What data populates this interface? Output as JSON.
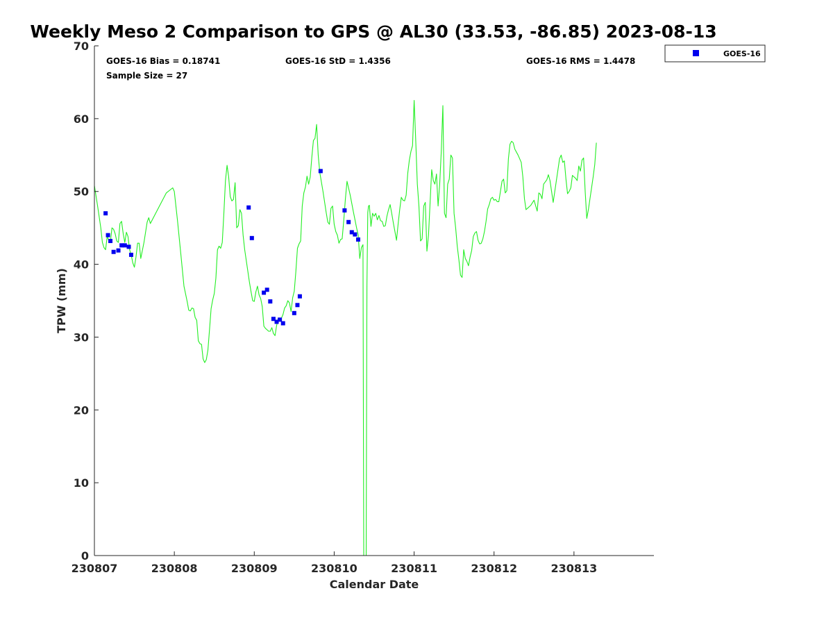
{
  "chart_data": {
    "type": "line",
    "title": "Weekly Meso 2 Comparison to GPS @ AL30 (33.53, -86.85) 2023-08-13",
    "xlabel": "Calendar Date",
    "ylabel": "TPW (mm)",
    "xlim": [
      0,
      7
    ],
    "ylim": [
      0,
      70
    ],
    "x_tick_values": [
      0,
      1,
      2,
      3,
      4,
      5,
      6
    ],
    "x_tick_labels": [
      "230807",
      "230808",
      "230809",
      "230810",
      "230811",
      "230812",
      "230813"
    ],
    "y_tick_values": [
      0,
      10,
      20,
      30,
      40,
      50,
      60,
      70
    ],
    "y_tick_labels": [
      "0",
      "10",
      "20",
      "30",
      "40",
      "50",
      "60",
      "70"
    ],
    "stats": {
      "bias": "GOES-16 Bias = 0.18741",
      "std": "GOES-16 StD = 1.4356",
      "rms": "GOES-16 RMS = 1.4478",
      "sample": "Sample Size = 27"
    },
    "legend": {
      "position": "outside-top-right",
      "entries": [
        "GOES-16"
      ]
    },
    "grid": false,
    "colors": {
      "gps_line": "#22ee22",
      "goes_marker": "#0000ee"
    },
    "series": [
      {
        "kind": "line",
        "points": [
          [
            0.0,
            50.8
          ],
          [
            0.04,
            48
          ],
          [
            0.08,
            45
          ],
          [
            0.1,
            43
          ],
          [
            0.12,
            42.3
          ],
          [
            0.14,
            42
          ],
          [
            0.16,
            43.8
          ],
          [
            0.18,
            43.3
          ],
          [
            0.2,
            43
          ],
          [
            0.22,
            45
          ],
          [
            0.24,
            44.8
          ],
          [
            0.26,
            44.2
          ],
          [
            0.28,
            43.2
          ],
          [
            0.3,
            43
          ],
          [
            0.32,
            45.6
          ],
          [
            0.34,
            45.9
          ],
          [
            0.36,
            44.2
          ],
          [
            0.38,
            43
          ],
          [
            0.4,
            44.4
          ],
          [
            0.42,
            43.8
          ],
          [
            0.44,
            42
          ],
          [
            0.46,
            41.3
          ],
          [
            0.48,
            40.2
          ],
          [
            0.5,
            39.6
          ],
          [
            0.52,
            41
          ],
          [
            0.54,
            42.9
          ],
          [
            0.56,
            42.9
          ],
          [
            0.58,
            40.8
          ],
          [
            0.62,
            43
          ],
          [
            0.66,
            45.8
          ],
          [
            0.68,
            46.4
          ],
          [
            0.7,
            45.6
          ],
          [
            0.8,
            47.7
          ],
          [
            0.9,
            49.8
          ],
          [
            0.98,
            50.5
          ],
          [
            1.0,
            50
          ],
          [
            1.04,
            46
          ],
          [
            1.08,
            41.5
          ],
          [
            1.12,
            37
          ],
          [
            1.16,
            34.9
          ],
          [
            1.18,
            33.7
          ],
          [
            1.2,
            33.6
          ],
          [
            1.22,
            34
          ],
          [
            1.24,
            33.9
          ],
          [
            1.26,
            32.7
          ],
          [
            1.28,
            32.3
          ],
          [
            1.3,
            29.5
          ],
          [
            1.32,
            29.1
          ],
          [
            1.34,
            29
          ],
          [
            1.36,
            27
          ],
          [
            1.38,
            26.5
          ],
          [
            1.4,
            26.9
          ],
          [
            1.42,
            28.2
          ],
          [
            1.44,
            31
          ],
          [
            1.46,
            33.9
          ],
          [
            1.48,
            35.1
          ],
          [
            1.5,
            36
          ],
          [
            1.52,
            38.1
          ],
          [
            1.54,
            42
          ],
          [
            1.56,
            42.5
          ],
          [
            1.58,
            42.2
          ],
          [
            1.6,
            43
          ],
          [
            1.62,
            47
          ],
          [
            1.64,
            51.5
          ],
          [
            1.66,
            53.6
          ],
          [
            1.68,
            52
          ],
          [
            1.7,
            49.3
          ],
          [
            1.72,
            48.7
          ],
          [
            1.74,
            48.9
          ],
          [
            1.76,
            51.2
          ],
          [
            1.78,
            45
          ],
          [
            1.8,
            45.3
          ],
          [
            1.82,
            47.5
          ],
          [
            1.84,
            47
          ],
          [
            1.86,
            44
          ],
          [
            1.88,
            42
          ],
          [
            1.9,
            40.5
          ],
          [
            1.92,
            39
          ],
          [
            1.94,
            37.5
          ],
          [
            1.96,
            36.2
          ],
          [
            1.98,
            35
          ],
          [
            2.0,
            34.9
          ],
          [
            2.02,
            36.2
          ],
          [
            2.04,
            37
          ],
          [
            2.06,
            35.8
          ],
          [
            2.08,
            35.3
          ],
          [
            2.1,
            34.2
          ],
          [
            2.12,
            31.5
          ],
          [
            2.14,
            31.2
          ],
          [
            2.16,
            31
          ],
          [
            2.18,
            30.8
          ],
          [
            2.2,
            30.8
          ],
          [
            2.22,
            31.3
          ],
          [
            2.24,
            30.5
          ],
          [
            2.26,
            30.2
          ],
          [
            2.28,
            31.6
          ],
          [
            2.3,
            32.6
          ],
          [
            2.32,
            32.2
          ],
          [
            2.34,
            32.6
          ],
          [
            2.36,
            33.1
          ],
          [
            2.38,
            34
          ],
          [
            2.4,
            34.3
          ],
          [
            2.42,
            35
          ],
          [
            2.44,
            34.7
          ],
          [
            2.46,
            33.5
          ],
          [
            2.48,
            35.4
          ],
          [
            2.5,
            36.3
          ],
          [
            2.52,
            39
          ],
          [
            2.54,
            42.2
          ],
          [
            2.56,
            42.8
          ],
          [
            2.58,
            43.2
          ],
          [
            2.6,
            48
          ],
          [
            2.62,
            49.8
          ],
          [
            2.64,
            50.6
          ],
          [
            2.66,
            52.1
          ],
          [
            2.68,
            51
          ],
          [
            2.7,
            52
          ],
          [
            2.72,
            54.7
          ],
          [
            2.74,
            57
          ],
          [
            2.76,
            57.3
          ],
          [
            2.78,
            59.2
          ],
          [
            2.8,
            55
          ],
          [
            2.82,
            52.6
          ],
          [
            2.86,
            50
          ],
          [
            2.9,
            47.1
          ],
          [
            2.92,
            45.8
          ],
          [
            2.94,
            45.5
          ],
          [
            2.96,
            47.7
          ],
          [
            2.98,
            48
          ],
          [
            3.0,
            45.5
          ],
          [
            3.02,
            44.5
          ],
          [
            3.04,
            44
          ],
          [
            3.06,
            42.9
          ],
          [
            3.08,
            43.4
          ],
          [
            3.1,
            43.5
          ],
          [
            3.12,
            46
          ],
          [
            3.14,
            48.9
          ],
          [
            3.16,
            51.4
          ],
          [
            3.2,
            49.5
          ],
          [
            3.24,
            47.2
          ],
          [
            3.28,
            45
          ],
          [
            3.3,
            44
          ],
          [
            3.32,
            40.8
          ],
          [
            3.34,
            42.3
          ],
          [
            3.36,
            42.7
          ],
          [
            3.37,
            0
          ],
          [
            3.4,
            0
          ],
          [
            3.41,
            37
          ],
          [
            3.42,
            47.1
          ],
          [
            3.43,
            48
          ],
          [
            3.44,
            48.1
          ],
          [
            3.46,
            45.2
          ],
          [
            3.48,
            47
          ],
          [
            3.5,
            46.6
          ],
          [
            3.52,
            47
          ],
          [
            3.54,
            46.1
          ],
          [
            3.56,
            46.7
          ],
          [
            3.58,
            46
          ],
          [
            3.6,
            45.9
          ],
          [
            3.62,
            45.2
          ],
          [
            3.64,
            45.3
          ],
          [
            3.66,
            46.6
          ],
          [
            3.68,
            47.5
          ],
          [
            3.7,
            48.2
          ],
          [
            3.72,
            47
          ],
          [
            3.74,
            45.7
          ],
          [
            3.76,
            44.5
          ],
          [
            3.78,
            43.3
          ],
          [
            3.8,
            45.5
          ],
          [
            3.82,
            47.5
          ],
          [
            3.84,
            49.2
          ],
          [
            3.86,
            48.8
          ],
          [
            3.88,
            48.7
          ],
          [
            3.9,
            49.5
          ],
          [
            3.92,
            52.5
          ],
          [
            3.94,
            54.3
          ],
          [
            3.96,
            55.5
          ],
          [
            3.98,
            56.3
          ],
          [
            4.0,
            62.5
          ],
          [
            4.02,
            57
          ],
          [
            4.04,
            51
          ],
          [
            4.06,
            48
          ],
          [
            4.08,
            43.2
          ],
          [
            4.1,
            43.5
          ],
          [
            4.12,
            48
          ],
          [
            4.14,
            48.5
          ],
          [
            4.16,
            41.8
          ],
          [
            4.18,
            44
          ],
          [
            4.2,
            48.5
          ],
          [
            4.22,
            53
          ],
          [
            4.24,
            51.5
          ],
          [
            4.26,
            51
          ],
          [
            4.28,
            52.4
          ],
          [
            4.3,
            48
          ],
          [
            4.32,
            51
          ],
          [
            4.34,
            55.5
          ],
          [
            4.36,
            61.8
          ],
          [
            4.38,
            47
          ],
          [
            4.4,
            46.4
          ],
          [
            4.42,
            51
          ],
          [
            4.44,
            51.7
          ],
          [
            4.46,
            55
          ],
          [
            4.48,
            54.6
          ],
          [
            4.5,
            47
          ],
          [
            4.52,
            45
          ],
          [
            4.54,
            42.5
          ],
          [
            4.56,
            40.6
          ],
          [
            4.58,
            38.5
          ],
          [
            4.6,
            38.2
          ],
          [
            4.62,
            42
          ],
          [
            4.64,
            40.8
          ],
          [
            4.66,
            40.4
          ],
          [
            4.68,
            39.8
          ],
          [
            4.7,
            41
          ],
          [
            4.72,
            41.9
          ],
          [
            4.74,
            43.8
          ],
          [
            4.76,
            44.3
          ],
          [
            4.78,
            44.5
          ],
          [
            4.8,
            43.3
          ],
          [
            4.82,
            42.8
          ],
          [
            4.84,
            42.9
          ],
          [
            4.86,
            43.5
          ],
          [
            4.88,
            44.5
          ],
          [
            4.9,
            45.9
          ],
          [
            4.92,
            47.6
          ],
          [
            4.94,
            48.2
          ],
          [
            4.96,
            49
          ],
          [
            4.98,
            49.2
          ],
          [
            5.0,
            48.8
          ],
          [
            5.02,
            48.9
          ],
          [
            5.04,
            48.6
          ],
          [
            5.06,
            48.6
          ],
          [
            5.08,
            50
          ],
          [
            5.1,
            51.4
          ],
          [
            5.12,
            51.7
          ],
          [
            5.14,
            49.8
          ],
          [
            5.16,
            50.1
          ],
          [
            5.18,
            54.5
          ],
          [
            5.2,
            56.5
          ],
          [
            5.22,
            56.9
          ],
          [
            5.24,
            56.7
          ],
          [
            5.26,
            55.8
          ],
          [
            5.3,
            55
          ],
          [
            5.34,
            54
          ],
          [
            5.36,
            52
          ],
          [
            5.38,
            49
          ],
          [
            5.4,
            47.5
          ],
          [
            5.42,
            47.7
          ],
          [
            5.46,
            48.1
          ],
          [
            5.5,
            48.8
          ],
          [
            5.54,
            47.3
          ],
          [
            5.56,
            49.8
          ],
          [
            5.58,
            49.6
          ],
          [
            5.6,
            49
          ],
          [
            5.62,
            51
          ],
          [
            5.64,
            51.3
          ],
          [
            5.66,
            51.6
          ],
          [
            5.68,
            52.3
          ],
          [
            5.7,
            51.5
          ],
          [
            5.72,
            50
          ],
          [
            5.74,
            48.5
          ],
          [
            5.76,
            50
          ],
          [
            5.78,
            51.5
          ],
          [
            5.8,
            53
          ],
          [
            5.82,
            54.5
          ],
          [
            5.84,
            55
          ],
          [
            5.86,
            54
          ],
          [
            5.88,
            54.2
          ],
          [
            5.9,
            51.7
          ],
          [
            5.92,
            49.7
          ],
          [
            5.94,
            50
          ],
          [
            5.96,
            50.5
          ],
          [
            5.98,
            52.2
          ],
          [
            6.02,
            51.8
          ],
          [
            6.04,
            51.5
          ],
          [
            6.06,
            53.5
          ],
          [
            6.08,
            52.8
          ],
          [
            6.1,
            54.3
          ],
          [
            6.12,
            54.6
          ],
          [
            6.14,
            50
          ],
          [
            6.16,
            46.3
          ],
          [
            6.18,
            47.5
          ],
          [
            6.2,
            49
          ],
          [
            6.22,
            50.5
          ],
          [
            6.24,
            52
          ],
          [
            6.26,
            53.7
          ],
          [
            6.28,
            56.7
          ]
        ]
      },
      {
        "name": "GOES-16",
        "kind": "marker",
        "points": [
          [
            0.14,
            47
          ],
          [
            0.17,
            44
          ],
          [
            0.2,
            43.2
          ],
          [
            0.24,
            41.7
          ],
          [
            0.3,
            41.9
          ],
          [
            0.34,
            42.6
          ],
          [
            0.38,
            42.6
          ],
          [
            0.43,
            42.4
          ],
          [
            0.46,
            41.3
          ],
          [
            1.93,
            47.8
          ],
          [
            1.97,
            43.6
          ],
          [
            2.12,
            36.1
          ],
          [
            2.16,
            36.5
          ],
          [
            2.2,
            34.9
          ],
          [
            2.24,
            32.5
          ],
          [
            2.28,
            32.1
          ],
          [
            2.32,
            32.4
          ],
          [
            2.36,
            31.9
          ],
          [
            2.5,
            33.3
          ],
          [
            2.54,
            34.4
          ],
          [
            2.57,
            35.6
          ],
          [
            2.83,
            52.8
          ],
          [
            3.13,
            47.4
          ],
          [
            3.18,
            45.8
          ],
          [
            3.22,
            44.4
          ],
          [
            3.26,
            44.1
          ],
          [
            3.3,
            43.4
          ]
        ]
      }
    ]
  }
}
